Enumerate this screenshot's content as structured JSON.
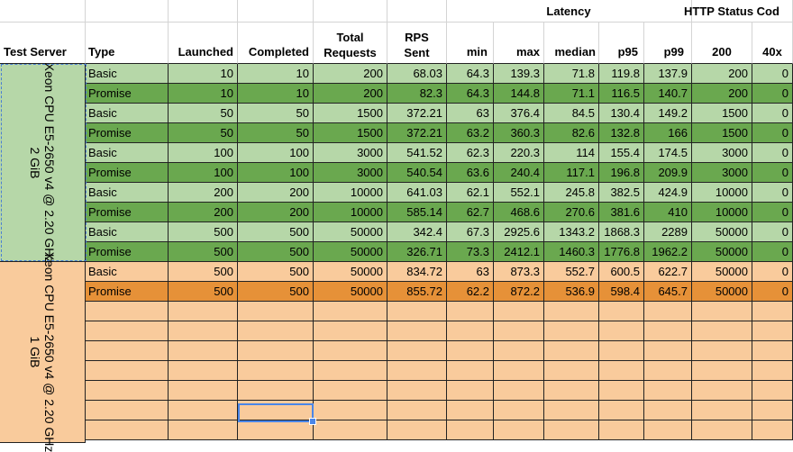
{
  "header": {
    "group_latency": "Latency",
    "group_status": "HTTP Status Cod",
    "columns": {
      "server": "Test Server",
      "type": "Type",
      "launched": "Launched",
      "completed": "Completed",
      "total_requests_l1": "Total",
      "total_requests_l2": "Requests",
      "rps_l1": "RPS",
      "rps_l2": "Sent",
      "min": "min",
      "max": "max",
      "median": "median",
      "p95": "p95",
      "p99": "p99",
      "s200": "200",
      "s40x": "40x"
    }
  },
  "servers": [
    {
      "l1": "Xeon CPU E5-2650 v4 @ 2.20 GHz",
      "l2": "2 GiB"
    },
    {
      "l1": "Xeon CPU E5-2650 v4 @ 2.20 GHz",
      "l2": "1 GiB"
    }
  ],
  "rows": [
    {
      "type": "Basic",
      "launched": "10",
      "completed": "10",
      "total": "200",
      "rps": "68.03",
      "min": "64.3",
      "max": "139.3",
      "median": "71.8",
      "p95": "119.8",
      "p99": "137.9",
      "s200": "200",
      "s40x": "0"
    },
    {
      "type": "Promise",
      "launched": "10",
      "completed": "10",
      "total": "200",
      "rps": "82.3",
      "min": "64.3",
      "max": "144.8",
      "median": "71.1",
      "p95": "116.5",
      "p99": "140.7",
      "s200": "200",
      "s40x": "0"
    },
    {
      "type": "Basic",
      "launched": "50",
      "completed": "50",
      "total": "1500",
      "rps": "372.21",
      "min": "63",
      "max": "376.4",
      "median": "84.5",
      "p95": "130.4",
      "p99": "149.2",
      "s200": "1500",
      "s40x": "0"
    },
    {
      "type": "Promise",
      "launched": "50",
      "completed": "50",
      "total": "1500",
      "rps": "372.21",
      "min": "63.2",
      "max": "360.3",
      "median": "82.6",
      "p95": "132.8",
      "p99": "166",
      "s200": "1500",
      "s40x": "0"
    },
    {
      "type": "Basic",
      "launched": "100",
      "completed": "100",
      "total": "3000",
      "rps": "541.52",
      "min": "62.3",
      "max": "220.3",
      "median": "114",
      "p95": "155.4",
      "p99": "174.5",
      "s200": "3000",
      "s40x": "0"
    },
    {
      "type": "Promise",
      "launched": "100",
      "completed": "100",
      "total": "3000",
      "rps": "540.54",
      "min": "63.6",
      "max": "240.4",
      "median": "117.1",
      "p95": "196.8",
      "p99": "209.9",
      "s200": "3000",
      "s40x": "0"
    },
    {
      "type": "Basic",
      "launched": "200",
      "completed": "200",
      "total": "10000",
      "rps": "641.03",
      "min": "62.1",
      "max": "552.1",
      "median": "245.8",
      "p95": "382.5",
      "p99": "424.9",
      "s200": "10000",
      "s40x": "0"
    },
    {
      "type": "Promise",
      "launched": "200",
      "completed": "200",
      "total": "10000",
      "rps": "585.14",
      "min": "62.7",
      "max": "468.6",
      "median": "270.6",
      "p95": "381.6",
      "p99": "410",
      "s200": "10000",
      "s40x": "0"
    },
    {
      "type": "Basic",
      "launched": "500",
      "completed": "500",
      "total": "50000",
      "rps": "342.4",
      "min": "67.3",
      "max": "2925.6",
      "median": "1343.2",
      "p95": "1868.3",
      "p99": "2289",
      "s200": "50000",
      "s40x": "0"
    },
    {
      "type": "Promise",
      "launched": "500",
      "completed": "500",
      "total": "50000",
      "rps": "326.71",
      "min": "73.3",
      "max": "2412.1",
      "median": "1460.3",
      "p95": "1776.8",
      "p99": "1962.2",
      "s200": "50000",
      "s40x": "0"
    },
    {
      "type": "Basic",
      "launched": "500",
      "completed": "500",
      "total": "50000",
      "rps": "834.72",
      "min": "63",
      "max": "873.3",
      "median": "552.7",
      "p95": "600.5",
      "p99": "622.7",
      "s200": "50000",
      "s40x": "0"
    },
    {
      "type": "Promise",
      "launched": "500",
      "completed": "500",
      "total": "50000",
      "rps": "855.72",
      "min": "62.2",
      "max": "872.2",
      "median": "536.9",
      "p95": "598.4",
      "p99": "645.7",
      "s200": "50000",
      "s40x": "0"
    }
  ],
  "colors": {
    "light_green": "#b6d7a8",
    "dark_green": "#6aa84f",
    "light_orange": "#f9cb9c",
    "dark_orange": "#e69138",
    "selection": "#4a86e8"
  }
}
